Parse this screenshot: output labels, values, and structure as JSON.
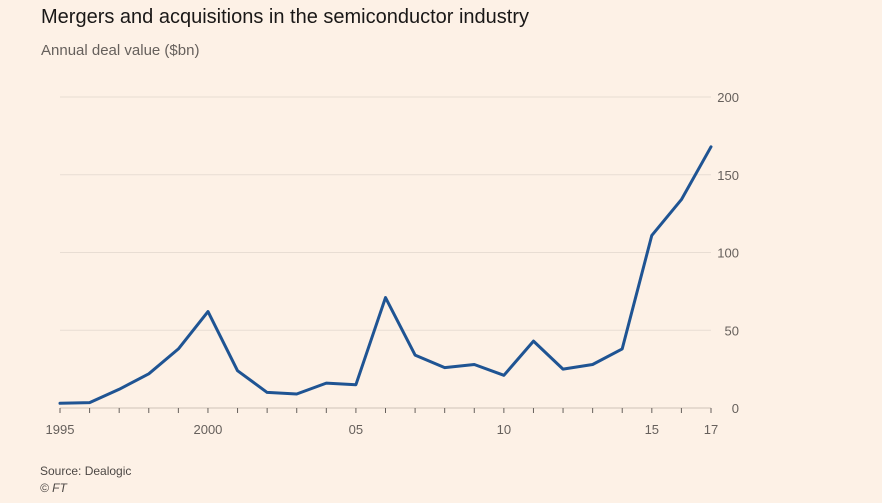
{
  "title": "Mergers and acquisitions in the semiconductor industry",
  "subtitle": "Annual deal value ($bn)",
  "source": "Source: Dealogic",
  "credit": "© FT",
  "colors": {
    "background": "#fdf1e6",
    "line": "#1f5493",
    "gridline": "#e8ddd3",
    "axis": "#66605c"
  },
  "chart_data": {
    "type": "line",
    "title": "Mergers and acquisitions in the semiconductor industry",
    "ylabel": "Annual deal value ($bn)",
    "xlabel": "",
    "xlim": [
      1995,
      2017
    ],
    "ylim": [
      0,
      200
    ],
    "grid": true,
    "x": [
      1995,
      1996,
      1997,
      1998,
      1999,
      2000,
      2001,
      2002,
      2003,
      2004,
      2005,
      2006,
      2007,
      2008,
      2009,
      2010,
      2011,
      2012,
      2013,
      2014,
      2015,
      2016,
      2017
    ],
    "series": [
      {
        "name": "Annual deal value",
        "values": [
          3,
          3.5,
          12,
          22,
          38,
          62,
          24,
          10,
          9,
          16,
          15,
          71,
          34,
          26,
          28,
          21,
          43,
          25,
          28,
          38,
          111,
          134,
          168
        ]
      }
    ],
    "x_ticks": [
      {
        "value": 1995,
        "label": "1995"
      },
      {
        "value": 2000,
        "label": "2000"
      },
      {
        "value": 2005,
        "label": "05"
      },
      {
        "value": 2010,
        "label": "10"
      },
      {
        "value": 2015,
        "label": "15"
      },
      {
        "value": 2017,
        "label": "17"
      }
    ],
    "y_ticks": [
      {
        "value": 0,
        "label": "0"
      },
      {
        "value": 50,
        "label": "50"
      },
      {
        "value": 100,
        "label": "100"
      },
      {
        "value": 150,
        "label": "150"
      },
      {
        "value": 200,
        "label": "200"
      }
    ]
  }
}
